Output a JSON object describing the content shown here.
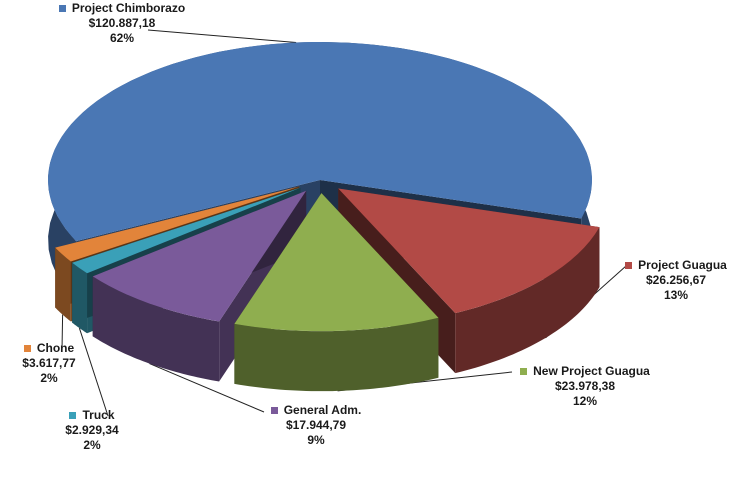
{
  "chart_data": {
    "type": "pie",
    "title": "",
    "legend": "labels-at-slices",
    "slices": [
      {
        "name": "Project Chimborazo",
        "value": 120887.18,
        "value_label": "$120.887,18",
        "percent_label": "62%",
        "color": "#4a77b4"
      },
      {
        "name": "Project Guagua",
        "value": 26256.67,
        "value_label": "$26.256,67",
        "percent_label": "13%",
        "color": "#b24a46"
      },
      {
        "name": "New Project Guagua",
        "value": 23978.38,
        "value_label": "$23.978,38",
        "percent_label": "12%",
        "color": "#8fae4f"
      },
      {
        "name": "General Adm.",
        "value": 17944.79,
        "value_label": "$17.944,79",
        "percent_label": "9%",
        "color": "#7a5a9a"
      },
      {
        "name": "Truck",
        "value": 2929.34,
        "value_label": "$2.929,34",
        "percent_label": "2%",
        "color": "#3aa0b8"
      },
      {
        "name": "Chone",
        "value": 3617.77,
        "value_label": "$3.617,77",
        "percent_label": "2%",
        "color": "#e2843a"
      }
    ]
  }
}
